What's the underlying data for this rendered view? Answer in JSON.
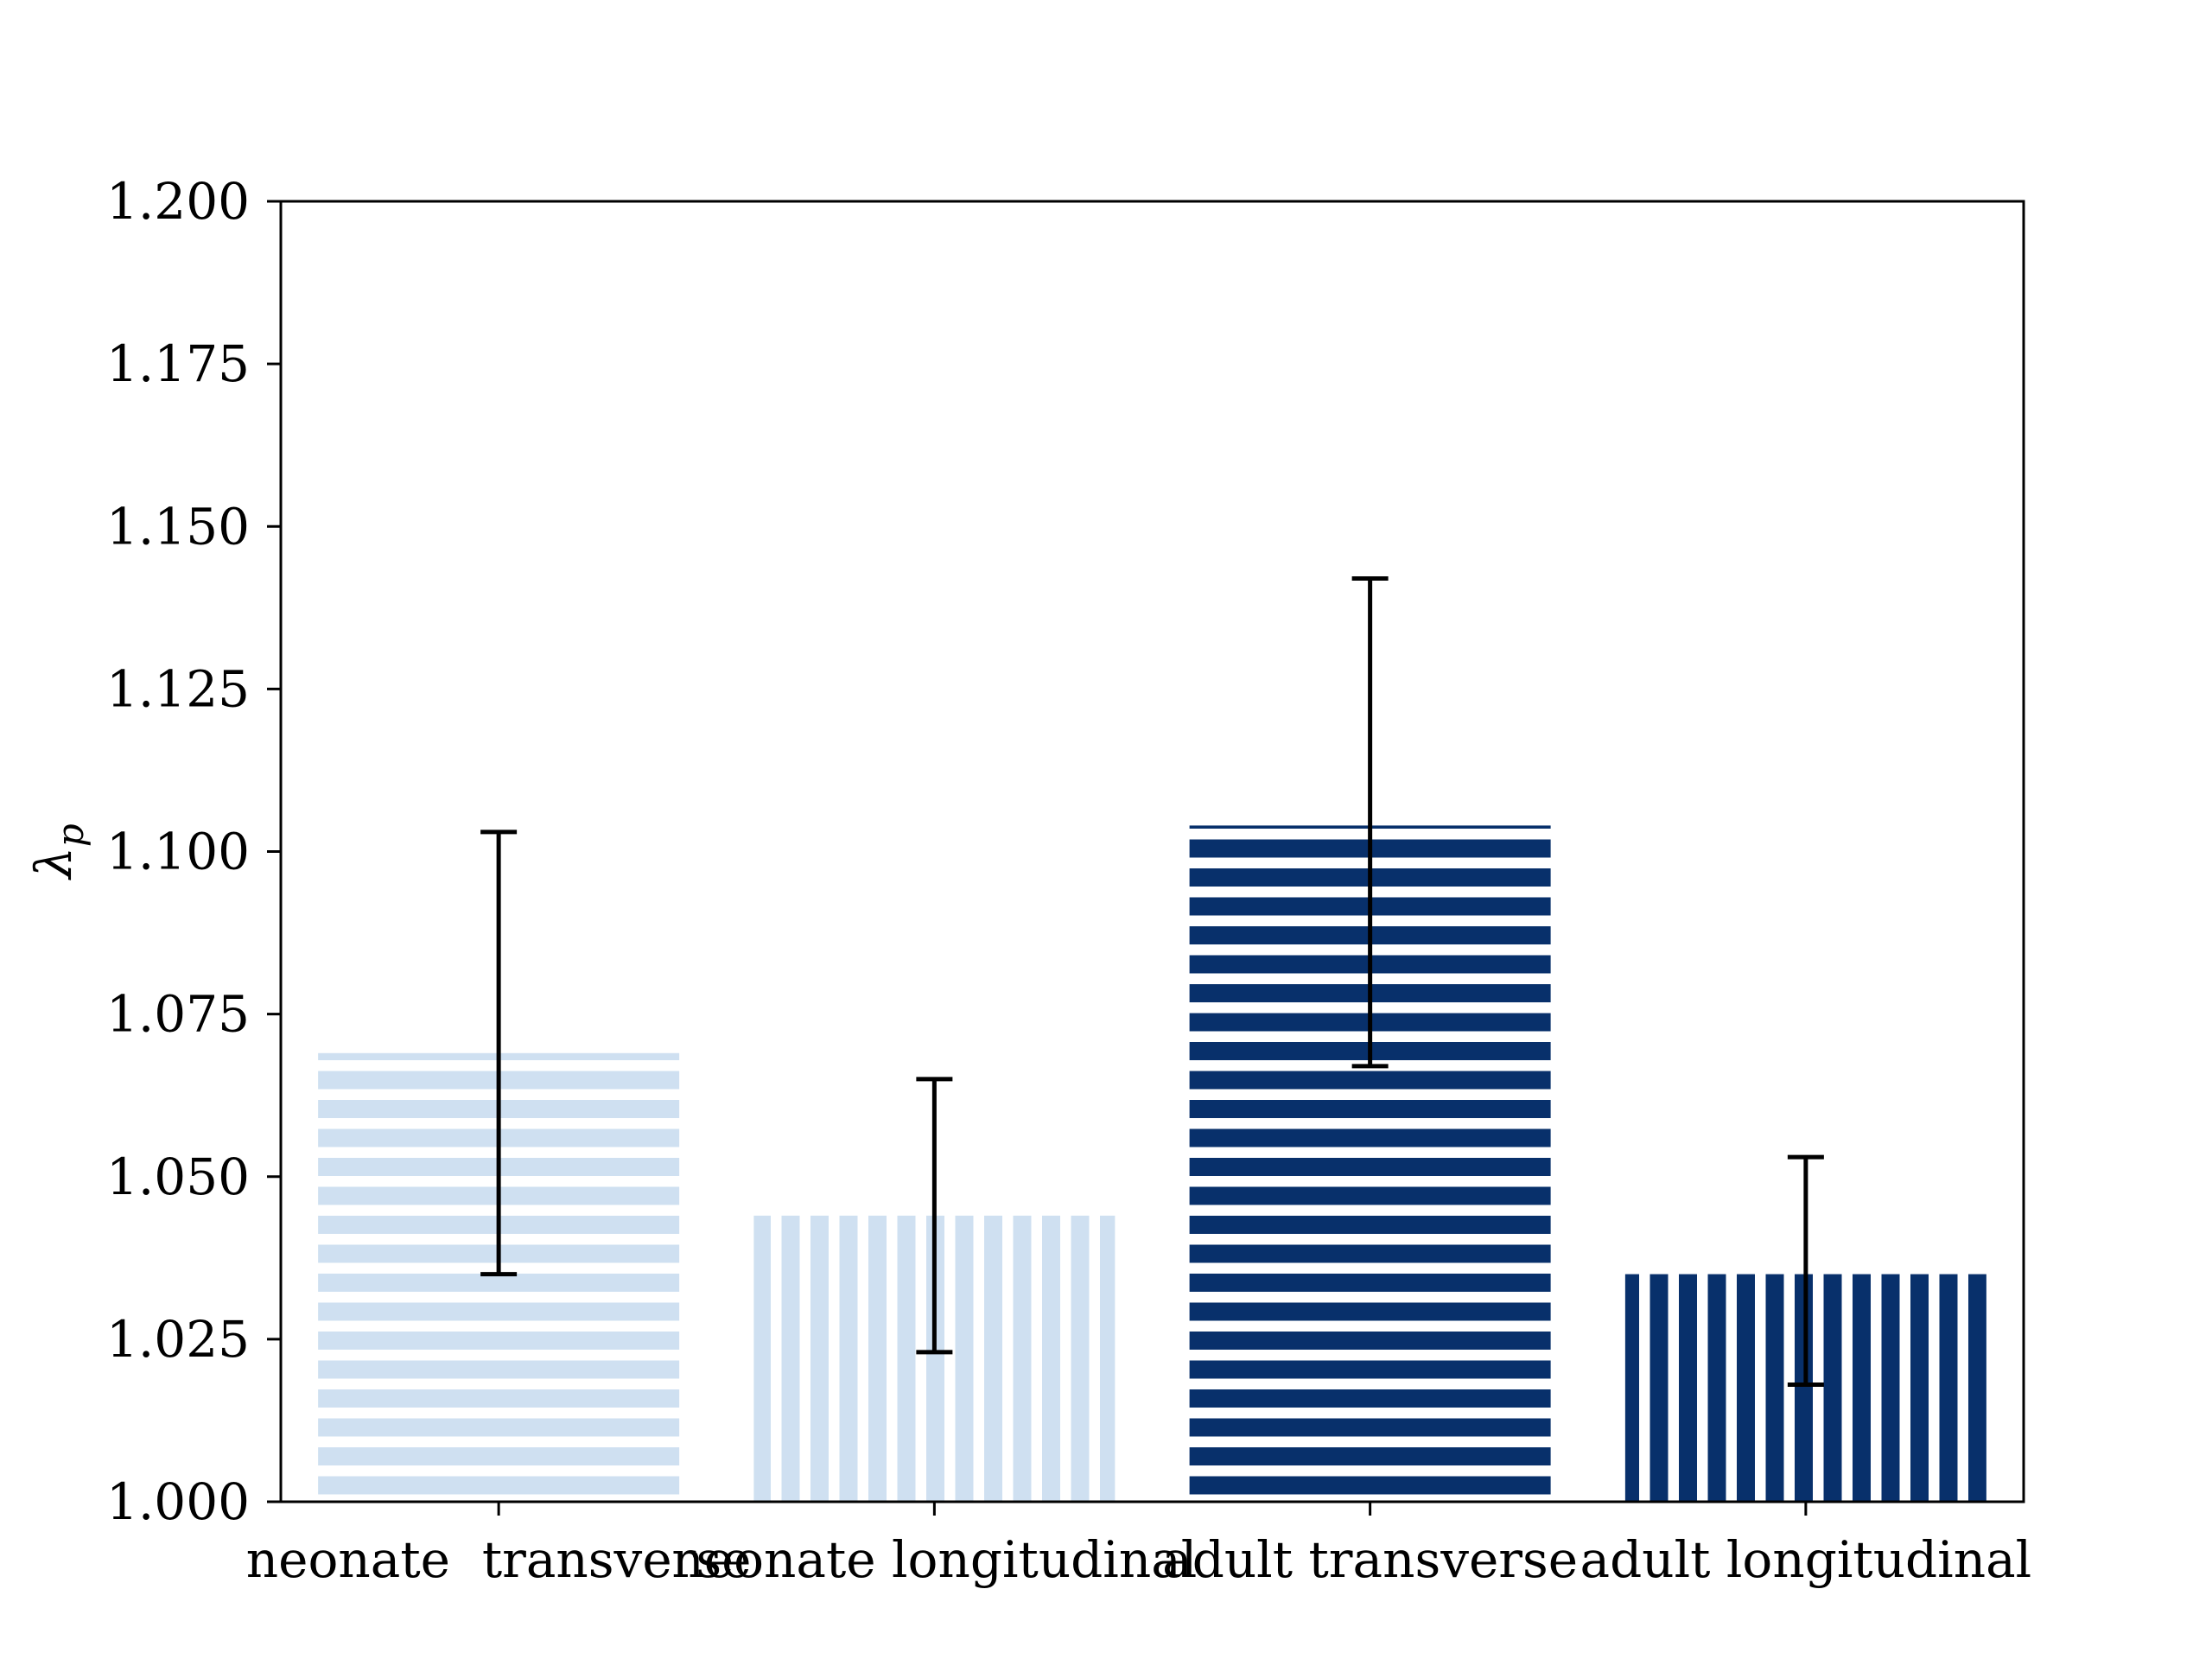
{
  "chart_data": {
    "type": "bar",
    "title": "",
    "xlabel": "",
    "ylabel": "λ",
    "ylabel_subscript": "p",
    "ylim": [
      1.0,
      1.2
    ],
    "yticks": [
      "1.000",
      "1.025",
      "1.050",
      "1.075",
      "1.100",
      "1.125",
      "1.150",
      "1.175",
      "1.200"
    ],
    "categories": [
      "neonate  transverse",
      "neonate longitudinal",
      "adult transverse",
      "adult longitudinal"
    ],
    "values": [
      1.069,
      1.044,
      1.104,
      1.035
    ],
    "error_low": [
      1.035,
      1.023,
      1.067,
      1.018
    ],
    "error_high": [
      1.103,
      1.065,
      1.142,
      1.053
    ],
    "hatch": [
      "horizontal",
      "vertical",
      "horizontal",
      "vertical"
    ],
    "colors": [
      "#cfe0f1",
      "#cfe0f1",
      "#08306b",
      "#08306b"
    ],
    "grid": false,
    "legend": "none"
  }
}
